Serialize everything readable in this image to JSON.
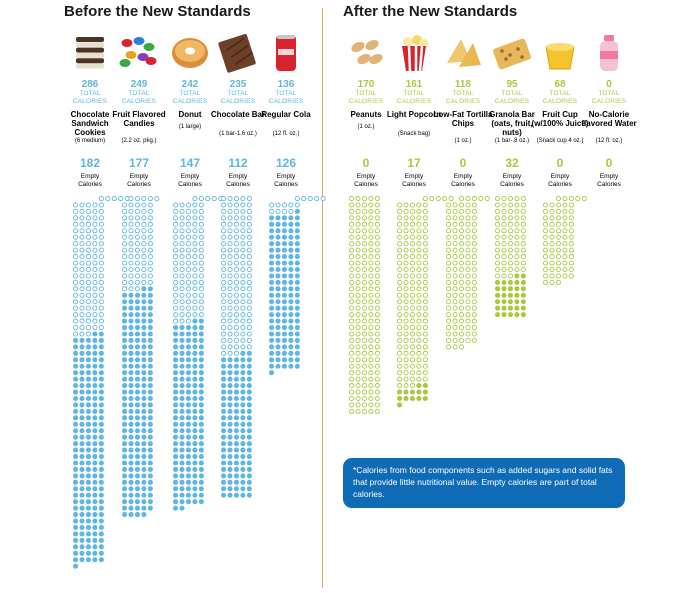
{
  "before_title": "Before the New Standards",
  "after_title": "After the New Standards",
  "units": {
    "total_line1": "TOTAL",
    "total_line2": "CALORIES",
    "empty_line1": "Empty",
    "empty_line2": "Calories"
  },
  "colors": {
    "before": "#5fb6e0",
    "after": "#a8c940",
    "divider": "#e3a94e",
    "note_bg": "#0f6bb6"
  },
  "footnote": "*Calories from food components such as added sugars and solid fats that provide little nutritional value. Empty calories are part of total calories.",
  "chart_data": {
    "type": "pictogram",
    "unit": "1 circle = 1 calorie",
    "groups": [
      {
        "title": "Before the New Standards",
        "items": [
          {
            "icon": "cookie-sandwich-icon",
            "total": 286,
            "name": "Chocolate Sandwich Cookies",
            "portion": "(6 medium)",
            "empty": 182
          },
          {
            "icon": "candies-icon",
            "total": 249,
            "name": "Fruit Flavored Candies",
            "portion": "(2.2 oz. pkg.)",
            "empty": 177
          },
          {
            "icon": "donut-icon",
            "total": 242,
            "name": "Donut",
            "portion": "(1 large)",
            "empty": 147
          },
          {
            "icon": "chocolate-bar-icon",
            "total": 235,
            "name": "Chocolate Bar",
            "portion": "(1 bar-1.6 oz.)",
            "empty": 112
          },
          {
            "icon": "cola-can-icon",
            "total": 136,
            "name": "Regular Cola",
            "portion": "(12 fl. oz.)",
            "empty": 126
          }
        ]
      },
      {
        "title": "After the New Standards",
        "items": [
          {
            "icon": "peanuts-icon",
            "total": 170,
            "name": "Peanuts",
            "portion": "(1 oz.)",
            "empty": 0
          },
          {
            "icon": "popcorn-icon",
            "total": 161,
            "name": "Light Popcorn",
            "portion": "(Snack bag)",
            "empty": 17
          },
          {
            "icon": "tortilla-chips-icon",
            "total": 118,
            "name": "Low-Fat Tortilla Chips",
            "portion": "(1 oz.)",
            "empty": 0
          },
          {
            "icon": "granola-bar-icon",
            "total": 95,
            "name": "Granola Bar (oats, fruit, nuts)",
            "portion": "(1 bar-.8 oz.)",
            "empty": 32
          },
          {
            "icon": "fruit-cup-icon",
            "total": 68,
            "name": "Fruit Cup (w/100% Juice)",
            "portion": "(Snack cup 4 oz.)",
            "empty": 0
          },
          {
            "icon": "water-bottle-icon",
            "total": 0,
            "name": "No-Calorie flavored Water",
            "portion": "(12 fl. oz.)",
            "empty": 0
          }
        ]
      }
    ]
  }
}
